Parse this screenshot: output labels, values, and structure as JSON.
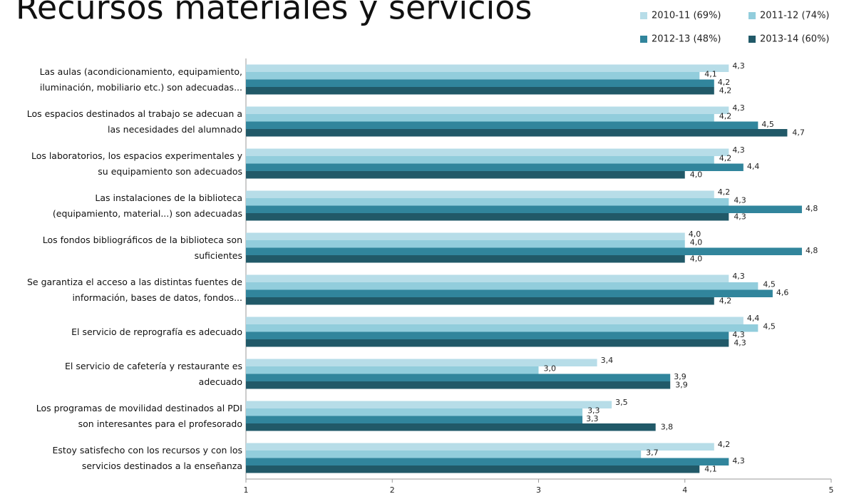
{
  "chart_data": {
    "type": "hbar",
    "title": "Recursos materiales y servicios",
    "categories": [
      "Las aulas (acondicionamiento, equipamiento,\niluminación, mobiliario etc.) son adecuadas...",
      "Los espacios destinados al trabajo se adecuan a\nlas necesidades del alumnado",
      "Los laboratorios, los espacios experimentales y\nsu equipamiento son adecuados",
      "Las instalaciones de la biblioteca\n(equipamiento, material...) son adecuadas",
      "Los fondos bibliográficos de la biblioteca son\nsuficientes",
      "Se garantiza el acceso a las distintas fuentes de\ninformación, bases de datos, fondos...",
      "El servicio de reprografía es adecuado",
      "El servicio de cafetería y restaurante es\nadecuado",
      "Los programas de movilidad destinados al PDI\nson interesantes para el profesorado",
      "Estoy satisfecho con los recursos y con los\nservicios destinados a la enseñanza"
    ],
    "series": [
      {
        "name": "2010-11 (69%)",
        "color": "#b7dde8",
        "values": [
          4.3,
          4.3,
          4.3,
          4.2,
          4.0,
          4.3,
          4.4,
          3.4,
          3.5,
          4.2
        ],
        "value_labels": [
          "4,3",
          "4,3",
          "4,3",
          "4,2",
          "4,0",
          "4,3",
          "4,4",
          "3,4",
          "3,5",
          "4,2"
        ]
      },
      {
        "name": "2011-12 (74%)",
        "color": "#92cddc",
        "values": [
          4.1,
          4.2,
          4.2,
          4.3,
          4.0,
          4.5,
          4.5,
          3.0,
          3.3,
          3.7
        ],
        "value_labels": [
          "4,1",
          "4,2",
          "4,2",
          "4,3",
          "4,0",
          "4,5",
          "4,5",
          "3,0",
          "3,3",
          "3,7"
        ]
      },
      {
        "name": "2012-13 (48%)",
        "color": "#31859c",
        "values": [
          4.2,
          4.5,
          4.4,
          4.8,
          4.8,
          4.6,
          4.3,
          3.9,
          3.3,
          4.3
        ],
        "value_labels": [
          "4,2",
          "4,5",
          "4,4",
          "4,8",
          "4,8",
          "4,6",
          "4,3",
          "3,9",
          "3,3",
          "4,3"
        ]
      },
      {
        "name": "2013-14 (60%)",
        "color": "#215968",
        "values": [
          4.2,
          4.7,
          4.0,
          4.3,
          4.0,
          4.2,
          4.3,
          3.9,
          3.8,
          4.1
        ],
        "value_labels": [
          "4,2",
          "4,7",
          "4,0",
          "4,3",
          "4,0",
          "4,2",
          "4,3",
          "3,9",
          "3,8",
          "4,1"
        ]
      }
    ],
    "xlim": [
      1,
      5
    ],
    "xticks": [
      1,
      2,
      3,
      4,
      5
    ],
    "grid": false,
    "legend": "top-right"
  }
}
